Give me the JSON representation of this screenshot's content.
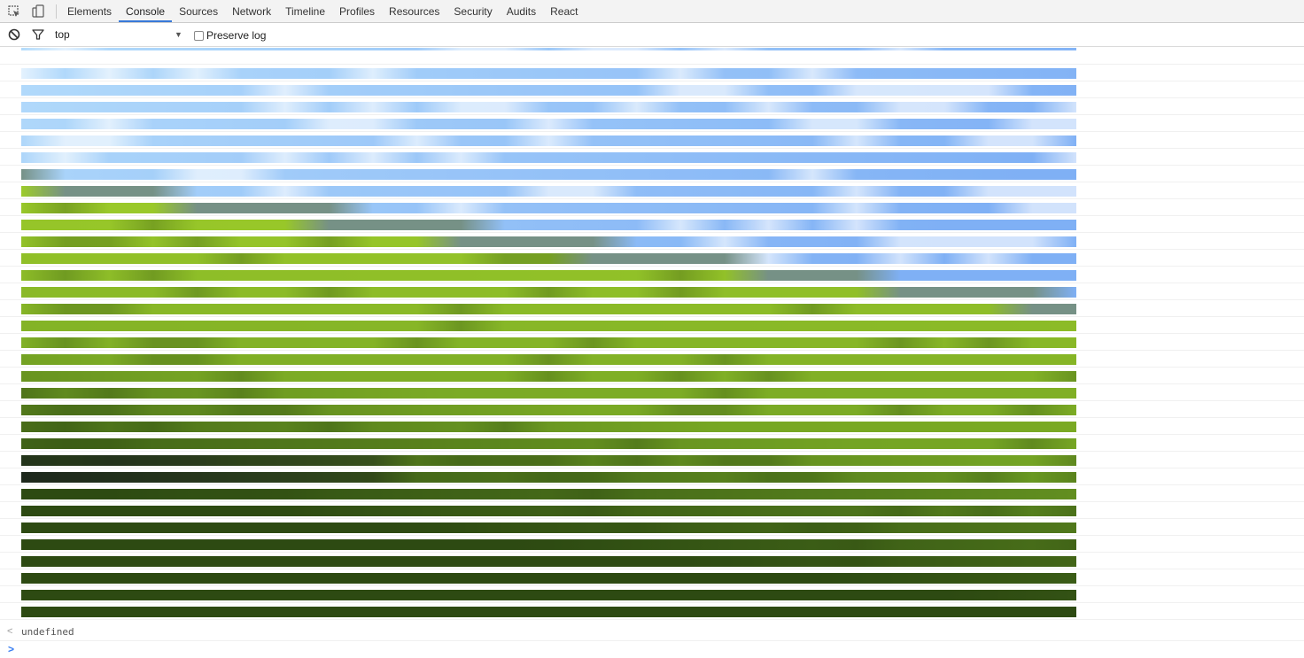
{
  "tabs": [
    {
      "label": "Elements",
      "selected": false
    },
    {
      "label": "Console",
      "selected": true
    },
    {
      "label": "Sources",
      "selected": false
    },
    {
      "label": "Network",
      "selected": false
    },
    {
      "label": "Timeline",
      "selected": false
    },
    {
      "label": "Profiles",
      "selected": false
    },
    {
      "label": "Resources",
      "selected": false
    },
    {
      "label": "Security",
      "selected": false
    },
    {
      "label": "Audits",
      "selected": false
    },
    {
      "label": "React",
      "selected": false
    }
  ],
  "icons": {
    "inspect": "inspect-element-icon",
    "device": "device-mode-icon",
    "clear": "clear-console-icon",
    "filter": "filter-icon",
    "dropdown": "chevron-down-icon"
  },
  "toolbar": {
    "context": "top",
    "preserve_log_label": "Preserve log",
    "preserve_log_checked": false
  },
  "console": {
    "result": "undefined",
    "result_arrow": "<",
    "prompt_arrow": ">"
  },
  "colors": {
    "accent": "#3879d9",
    "sky_light": "#b3dbfb",
    "sky": "#7fb0f5",
    "white": "#ffffff",
    "grass_light": "#9ccb2a",
    "grass": "#6a9a22",
    "grass_dark": "#2d4a12",
    "shadow": "#151820"
  }
}
